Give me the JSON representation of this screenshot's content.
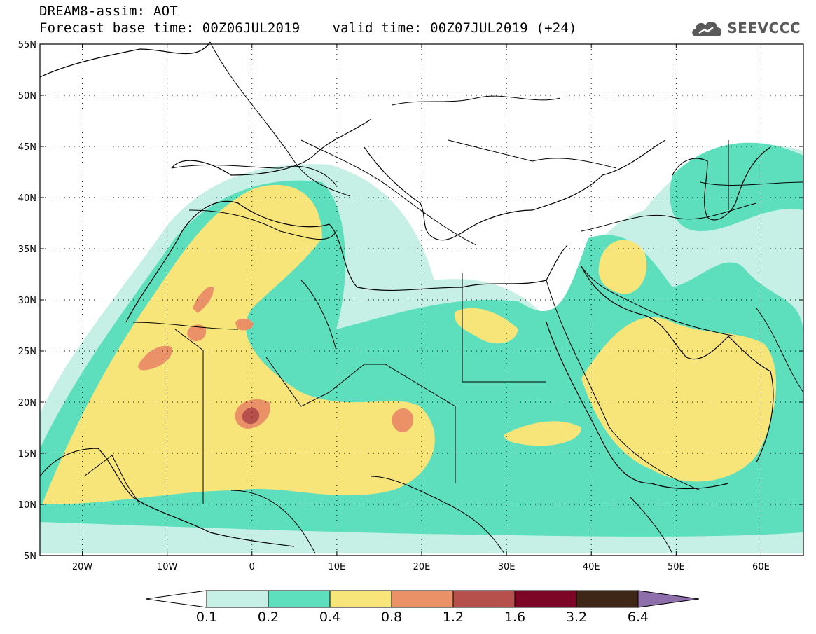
{
  "header": {
    "title": "DREAM8-assim: AOT",
    "base_time": "Forecast base time: 00Z06JUL2019",
    "valid_time": "valid time: 00Z07JUL2019 (+24)"
  },
  "logo": {
    "icon": "cloud-icon",
    "text": "SEEVCCC"
  },
  "map": {
    "lat_labels": [
      "55N",
      "50N",
      "45N",
      "40N",
      "35N",
      "30N",
      "25N",
      "20N",
      "15N",
      "10N",
      "5N"
    ],
    "lon_labels": [
      "20W",
      "10W",
      "0",
      "10E",
      "20E",
      "30E",
      "40E",
      "50E",
      "60E"
    ]
  },
  "legend": {
    "labels": [
      "0.1",
      "0.2",
      "0.4",
      "0.8",
      "1.2",
      "1.6",
      "3.2",
      "6.4"
    ],
    "colors": [
      "#c6f0e6",
      "#5ddfbe",
      "#f8e57a",
      "#ea9168",
      "#b5504c",
      "#7d0626",
      "#3f2717",
      "#8e6fab"
    ]
  },
  "chart_data": {
    "type": "heatmap",
    "variable": "AOT",
    "lat_range": [
      5,
      55
    ],
    "lon_range": [
      -25,
      65
    ],
    "levels": [
      0.1,
      0.2,
      0.4,
      0.8,
      1.2,
      1.6,
      3.2,
      6.4
    ]
  }
}
